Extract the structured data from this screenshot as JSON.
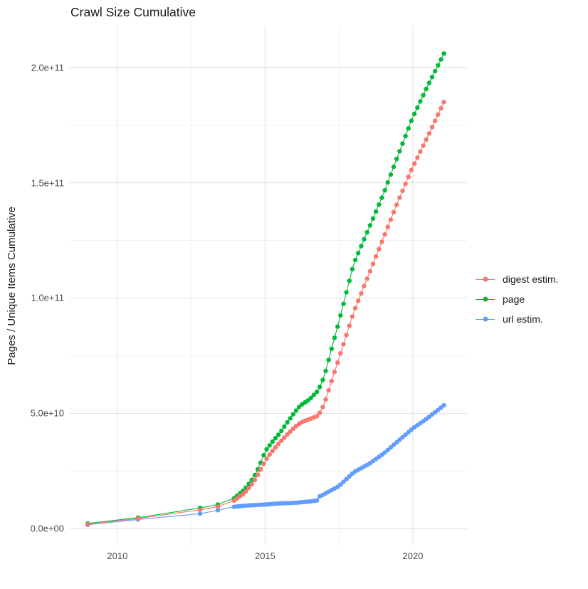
{
  "title": "Crawl Size Cumulative",
  "axes": {
    "y": {
      "label": "Pages / Unique Items Cumulative",
      "tick_labels": [
        "0.0e+00",
        "5.0e+10",
        "1.0e+11",
        "1.5e+11",
        "2.0e+11"
      ],
      "tick_values_e9": [
        0,
        50,
        100,
        150,
        200
      ]
    },
    "x": {
      "label": "",
      "tick_labels": [
        "2010",
        "2015",
        "2020"
      ],
      "tick_values": [
        2010,
        2015,
        2020
      ]
    }
  },
  "legend": {
    "position": "right",
    "order": [
      "digest estim.",
      "page",
      "url estim."
    ]
  },
  "chart_data": {
    "type": "scatter-line",
    "title": "Crawl Size Cumulative",
    "xlabel": "",
    "ylabel": "Pages / Unique Items Cumulative",
    "xlim": [
      2008.39,
      2021.83
    ],
    "ylim_e9": [
      -7.3,
      218.1
    ],
    "x_major": [
      2010,
      2015,
      2020
    ],
    "x_minor": [
      2012.5,
      2017.5
    ],
    "y_major_e9": [
      0,
      50,
      100,
      150,
      200
    ],
    "y_minor_e9": [
      25,
      75,
      125,
      175
    ],
    "grid": true,
    "background": "#FFFFFF",
    "grid_major_color": "#E4E4E4",
    "grid_minor_color": "#F0F0F0",
    "sparse_x": [
      2009.0,
      2010.7,
      2012.8,
      2013.4
    ],
    "dense_range": [
      2013.95,
      2021.05
    ],
    "point_step_years": 0.1,
    "series": [
      {
        "name": "url estim.",
        "color": "#619CFF",
        "anchors_e9": [
          [
            2009.0,
            1.7
          ],
          [
            2010.7,
            4.0
          ],
          [
            2012.8,
            6.5
          ],
          [
            2013.4,
            8.0
          ],
          [
            2013.95,
            9.5
          ],
          [
            2014.3,
            10.0
          ],
          [
            2015.0,
            10.5
          ],
          [
            2015.5,
            11.0
          ],
          [
            2016.0,
            11.2
          ],
          [
            2016.5,
            11.8
          ],
          [
            2016.78,
            12.3
          ],
          [
            2016.84,
            14.0
          ],
          [
            2017.0,
            15.0
          ],
          [
            2017.5,
            18.5
          ],
          [
            2018.0,
            24.5
          ],
          [
            2018.5,
            28.0
          ],
          [
            2019.0,
            32.5
          ],
          [
            2019.5,
            38.0
          ],
          [
            2020.0,
            43.5
          ],
          [
            2020.5,
            48.0
          ],
          [
            2020.85,
            51.5
          ],
          [
            2021.1,
            54.0
          ]
        ]
      },
      {
        "name": "page",
        "color": "#00BA38",
        "anchors_e9": [
          [
            2009.0,
            2.3
          ],
          [
            2010.7,
            4.8
          ],
          [
            2012.8,
            9.0
          ],
          [
            2013.4,
            10.5
          ],
          [
            2013.95,
            13.2
          ],
          [
            2014.3,
            17.0
          ],
          [
            2014.6,
            22.0
          ],
          [
            2014.8,
            27.0
          ],
          [
            2015.0,
            33.5
          ],
          [
            2015.2,
            37.0
          ],
          [
            2015.5,
            41.5
          ],
          [
            2015.8,
            47.0
          ],
          [
            2016.0,
            50.5
          ],
          [
            2016.2,
            53.5
          ],
          [
            2016.5,
            56.0
          ],
          [
            2016.8,
            60.0
          ],
          [
            2017.0,
            66.0
          ],
          [
            2017.5,
            90.0
          ],
          [
            2018.0,
            115.0
          ],
          [
            2018.5,
            130.0
          ],
          [
            2019.0,
            145.0
          ],
          [
            2019.5,
            162.0
          ],
          [
            2020.0,
            178.5
          ],
          [
            2020.5,
            192.0
          ],
          [
            2021.05,
            206.0
          ]
        ]
      },
      {
        "name": "digest estim.",
        "color": "#F8766D",
        "anchors_e9": [
          [
            2009.0,
            1.9
          ],
          [
            2010.7,
            4.4
          ],
          [
            2012.8,
            8.2
          ],
          [
            2013.4,
            9.6
          ],
          [
            2013.95,
            12.2
          ],
          [
            2014.3,
            15.5
          ],
          [
            2014.6,
            20.0
          ],
          [
            2014.8,
            24.5
          ],
          [
            2015.0,
            29.5
          ],
          [
            2015.2,
            33.0
          ],
          [
            2015.5,
            37.5
          ],
          [
            2015.8,
            41.5
          ],
          [
            2016.0,
            44.0
          ],
          [
            2016.2,
            46.0
          ],
          [
            2016.5,
            47.5
          ],
          [
            2016.8,
            49.0
          ],
          [
            2017.0,
            54.0
          ],
          [
            2017.5,
            74.0
          ],
          [
            2018.0,
            94.0
          ],
          [
            2018.5,
            110.0
          ],
          [
            2019.0,
            126.0
          ],
          [
            2019.5,
            142.0
          ],
          [
            2020.0,
            157.0
          ],
          [
            2020.5,
            170.0
          ],
          [
            2021.05,
            185.0
          ]
        ]
      }
    ]
  }
}
